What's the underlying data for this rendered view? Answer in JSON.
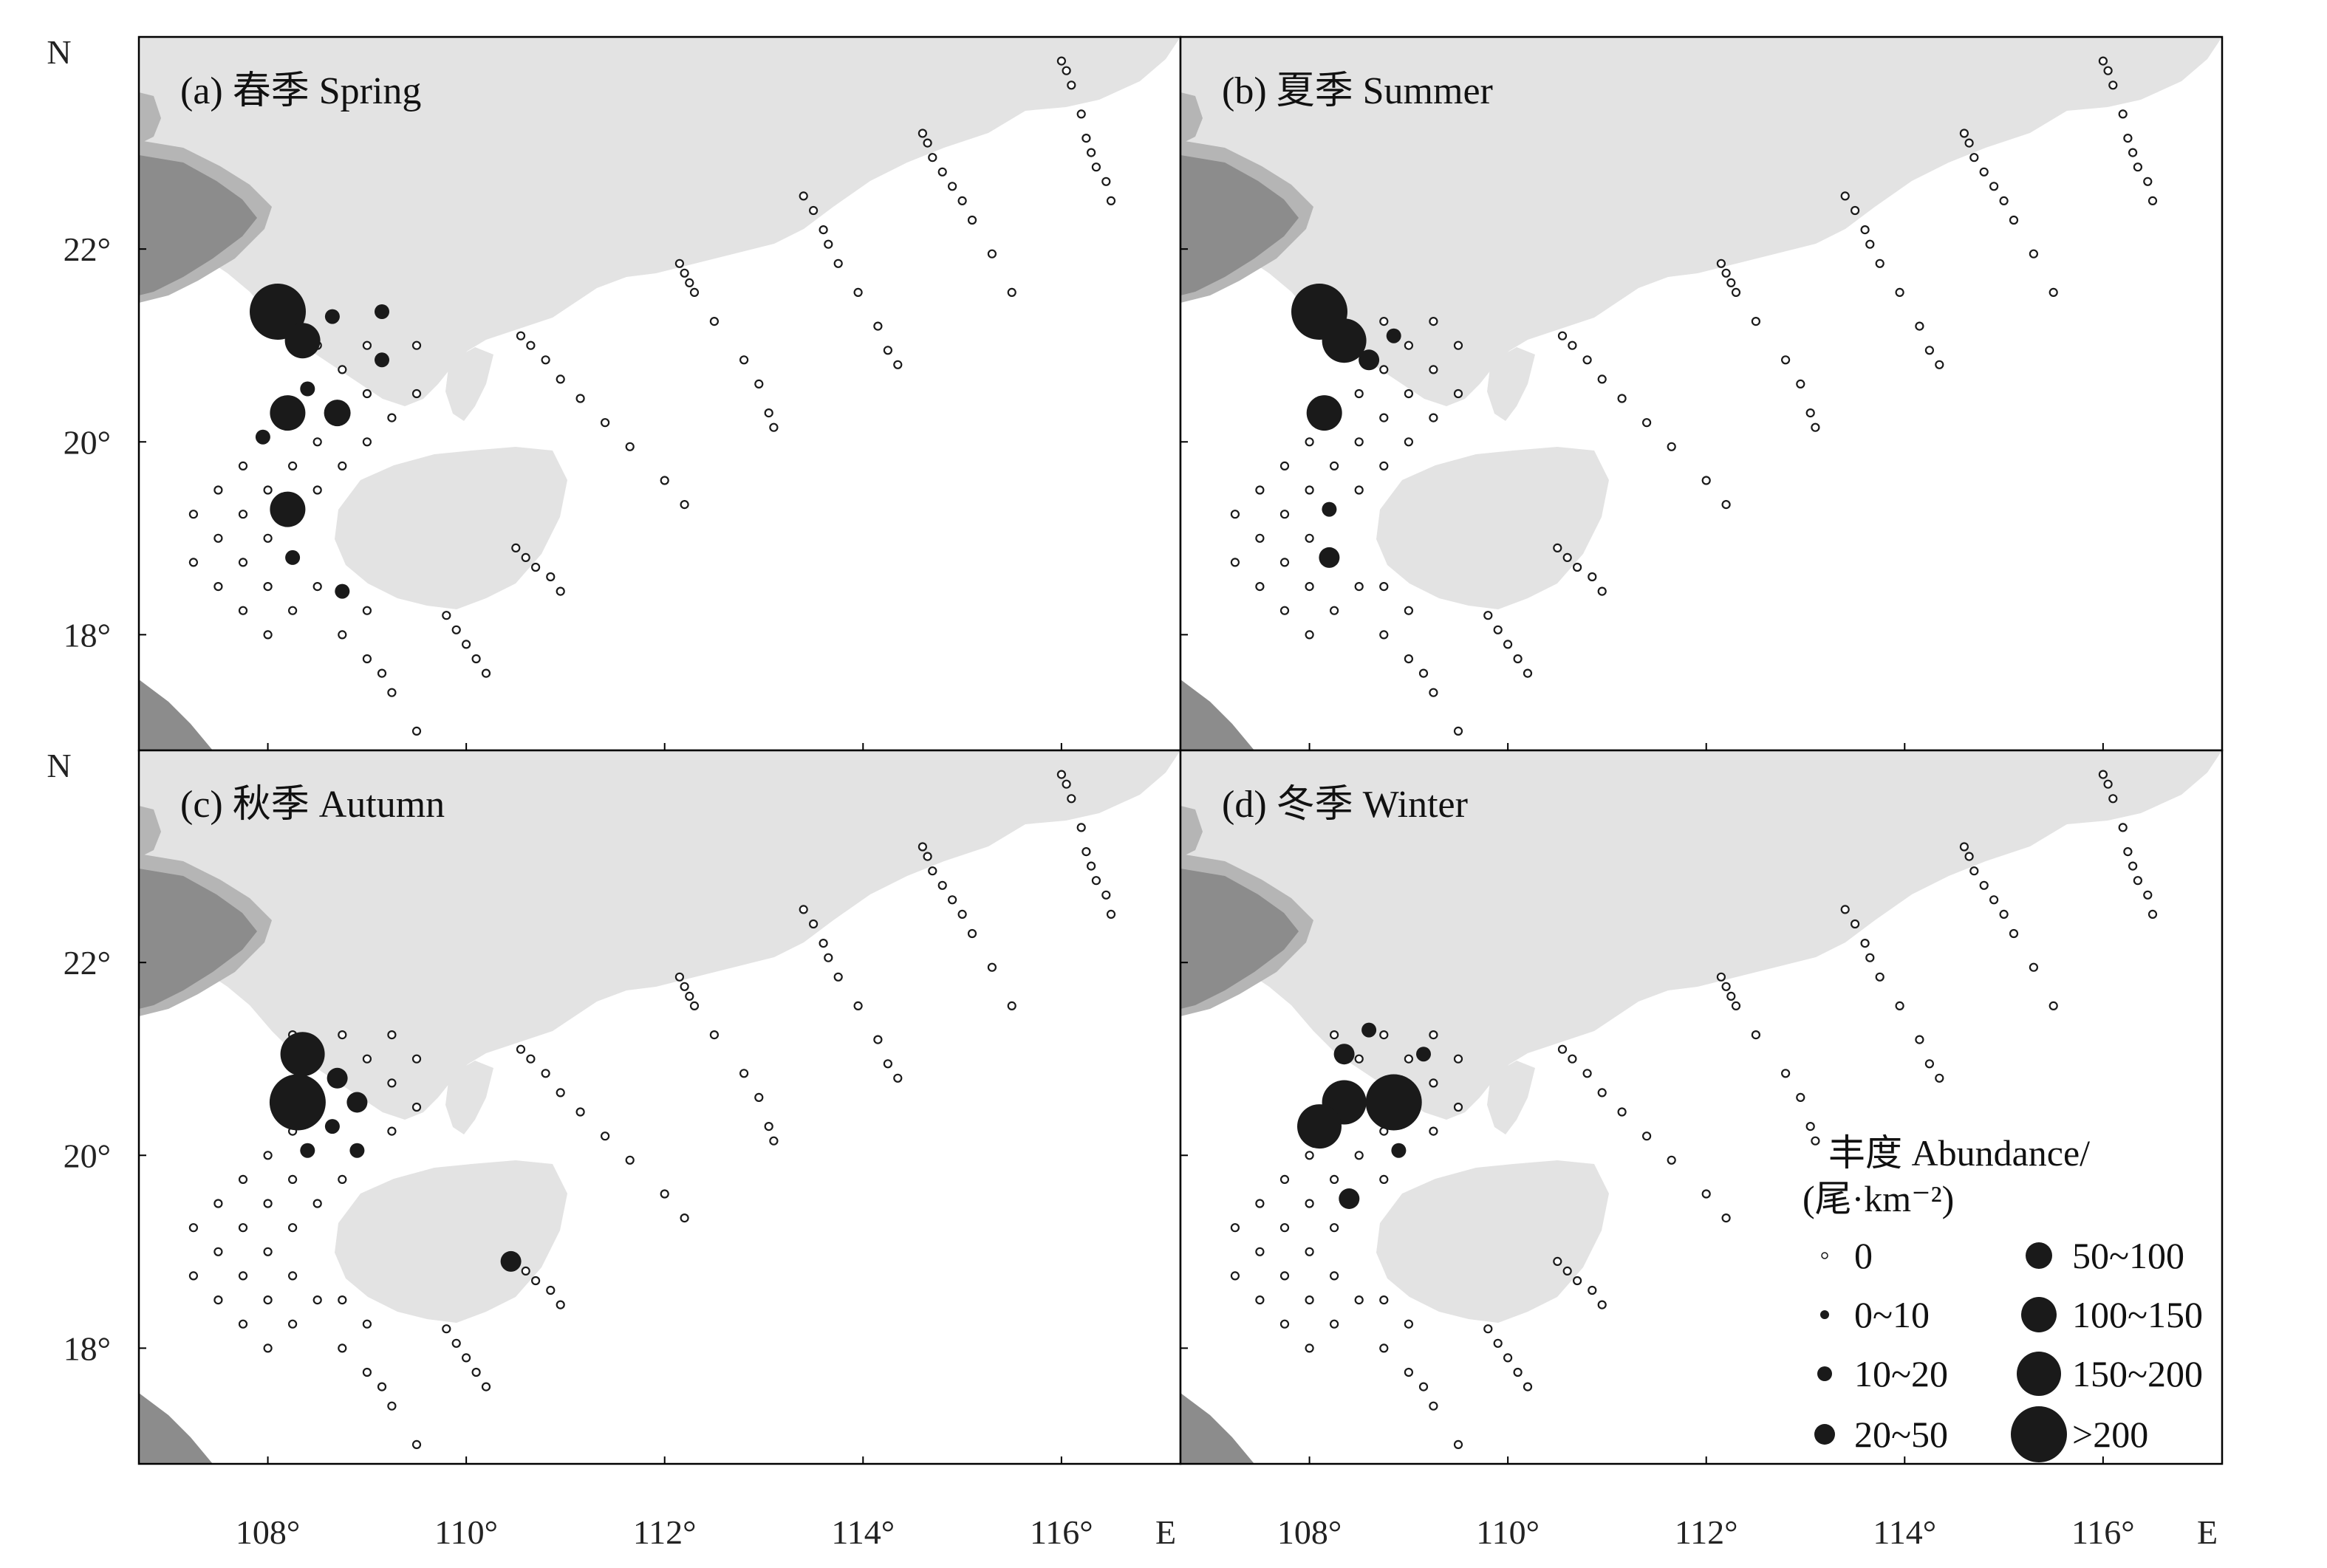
{
  "figure": {
    "axis_letters": {
      "north": "N",
      "east": "E"
    },
    "lon_ticks": [
      {
        "value": 108,
        "label": "108°"
      },
      {
        "value": 110,
        "label": "110°"
      },
      {
        "value": 112,
        "label": "112°"
      },
      {
        "value": 114,
        "label": "114°"
      },
      {
        "value": 116,
        "label": "116°"
      }
    ],
    "lat_ticks": [
      {
        "value": 18,
        "label": "18°"
      },
      {
        "value": 20,
        "label": "20°"
      },
      {
        "value": 22,
        "label": "22°"
      }
    ],
    "lon_range": [
      106.7,
      117.2
    ],
    "lat_range": [
      16.8,
      24.2
    ]
  },
  "colors": {
    "land": "#e3e3e3",
    "dark_land": "#8c8c8c",
    "dark_land_halo": "#b5b5b5",
    "marker": "#1a1a1a",
    "frame": "#000000"
  },
  "panels": [
    {
      "id": "a",
      "title": "(a) 春季 Spring"
    },
    {
      "id": "b",
      "title": "(b) 夏季 Summer"
    },
    {
      "id": "c",
      "title": "(c) 秋季 Autumn"
    },
    {
      "id": "d",
      "title": "(d) 冬季 Winter"
    }
  ],
  "legend": {
    "title_line1": "丰度 Abundance/",
    "title_line2": "(尾·km⁻²)",
    "classes": [
      "0",
      "0~10",
      "10~20",
      "20~50",
      "50~100",
      "100~150",
      "150~200",
      ">200"
    ]
  },
  "chart_data": {
    "type": "scatter",
    "note_classes": "0=0, 1=0~10, 2=10~20, 3=20~50, 4=50~100, 5=100~150, 6=150~200, 7=>200",
    "stations": [
      [
        107.25,
        19.25
      ],
      [
        107.25,
        18.75
      ],
      [
        107.5,
        19.5
      ],
      [
        107.5,
        19.0
      ],
      [
        107.5,
        18.5
      ],
      [
        107.75,
        19.75
      ],
      [
        107.75,
        19.25
      ],
      [
        107.75,
        18.75
      ],
      [
        107.75,
        18.25
      ],
      [
        108.0,
        20.0
      ],
      [
        108.0,
        19.5
      ],
      [
        108.0,
        19.0
      ],
      [
        108.0,
        18.5
      ],
      [
        108.0,
        18.0
      ],
      [
        108.25,
        20.25
      ],
      [
        108.25,
        19.75
      ],
      [
        108.25,
        19.25
      ],
      [
        108.25,
        18.75
      ],
      [
        108.25,
        18.25
      ],
      [
        108.5,
        20.5
      ],
      [
        108.5,
        20.0
      ],
      [
        108.5,
        19.5
      ],
      [
        108.5,
        18.5
      ],
      [
        108.75,
        20.75
      ],
      [
        108.75,
        20.25
      ],
      [
        108.75,
        19.75
      ],
      [
        108.75,
        18.5
      ],
      [
        109.0,
        21.0
      ],
      [
        109.0,
        20.5
      ],
      [
        109.0,
        20.0
      ],
      [
        109.0,
        18.25
      ],
      [
        109.25,
        20.75
      ],
      [
        109.25,
        20.25
      ],
      [
        109.25,
        17.4
      ],
      [
        109.5,
        20.5
      ],
      [
        109.5,
        17.0
      ],
      [
        108.25,
        21.25
      ],
      [
        108.5,
        21.0
      ],
      [
        108.75,
        21.25
      ],
      [
        109.25,
        21.25
      ],
      [
        109.5,
        21.0
      ],
      [
        108.75,
        18.0
      ],
      [
        109.0,
        17.75
      ],
      [
        109.15,
        17.6
      ],
      [
        109.8,
        18.2
      ],
      [
        109.9,
        18.05
      ],
      [
        110.0,
        17.9
      ],
      [
        110.1,
        17.75
      ],
      [
        110.2,
        17.6
      ],
      [
        110.5,
        18.9
      ],
      [
        110.6,
        18.8
      ],
      [
        110.7,
        18.7
      ],
      [
        110.85,
        18.6
      ],
      [
        110.95,
        18.45
      ],
      [
        110.55,
        21.1
      ],
      [
        110.65,
        21.0
      ],
      [
        110.8,
        20.85
      ],
      [
        110.95,
        20.65
      ],
      [
        111.15,
        20.45
      ],
      [
        111.4,
        20.2
      ],
      [
        111.65,
        19.95
      ],
      [
        112.0,
        19.6
      ],
      [
        112.2,
        19.35
      ],
      [
        112.15,
        21.85
      ],
      [
        112.2,
        21.75
      ],
      [
        112.25,
        21.65
      ],
      [
        112.3,
        21.55
      ],
      [
        112.5,
        21.25
      ],
      [
        112.8,
        20.85
      ],
      [
        112.95,
        20.6
      ],
      [
        113.05,
        20.3
      ],
      [
        113.1,
        20.15
      ],
      [
        113.4,
        22.55
      ],
      [
        113.5,
        22.4
      ],
      [
        113.6,
        22.2
      ],
      [
        113.65,
        22.05
      ],
      [
        113.75,
        21.85
      ],
      [
        113.95,
        21.55
      ],
      [
        114.15,
        21.2
      ],
      [
        114.25,
        20.95
      ],
      [
        114.35,
        20.8
      ],
      [
        114.6,
        23.2
      ],
      [
        114.65,
        23.1
      ],
      [
        114.7,
        22.95
      ],
      [
        114.8,
        22.8
      ],
      [
        114.9,
        22.65
      ],
      [
        115.0,
        22.5
      ],
      [
        115.1,
        22.3
      ],
      [
        115.3,
        21.95
      ],
      [
        115.5,
        21.55
      ],
      [
        116.0,
        23.95
      ],
      [
        116.05,
        23.85
      ],
      [
        116.1,
        23.7
      ],
      [
        116.2,
        23.4
      ],
      [
        116.25,
        23.15
      ],
      [
        116.3,
        23.0
      ],
      [
        116.35,
        22.85
      ],
      [
        116.45,
        22.7
      ],
      [
        116.5,
        22.5
      ]
    ],
    "series": [
      {
        "panel": "a",
        "catches": [
          {
            "lon": 108.1,
            "lat": 21.35,
            "class": 7
          },
          {
            "lon": 108.35,
            "lat": 21.05,
            "class": 5
          },
          {
            "lon": 108.65,
            "lat": 21.3,
            "class": 2
          },
          {
            "lon": 109.15,
            "lat": 21.35,
            "class": 2
          },
          {
            "lon": 109.15,
            "lat": 20.85,
            "class": 2
          },
          {
            "lon": 108.4,
            "lat": 20.55,
            "class": 2
          },
          {
            "lon": 108.2,
            "lat": 20.3,
            "class": 5
          },
          {
            "lon": 108.7,
            "lat": 20.3,
            "class": 4
          },
          {
            "lon": 107.95,
            "lat": 20.05,
            "class": 2
          },
          {
            "lon": 108.2,
            "lat": 19.3,
            "class": 5
          },
          {
            "lon": 108.25,
            "lat": 18.8,
            "class": 2
          },
          {
            "lon": 108.75,
            "lat": 18.45,
            "class": 2
          }
        ]
      },
      {
        "panel": "b",
        "catches": [
          {
            "lon": 108.1,
            "lat": 21.35,
            "class": 7
          },
          {
            "lon": 108.35,
            "lat": 21.05,
            "class": 6
          },
          {
            "lon": 108.6,
            "lat": 20.85,
            "class": 3
          },
          {
            "lon": 108.85,
            "lat": 21.1,
            "class": 2
          },
          {
            "lon": 108.15,
            "lat": 20.3,
            "class": 5
          },
          {
            "lon": 108.2,
            "lat": 19.3,
            "class": 2
          },
          {
            "lon": 108.2,
            "lat": 18.8,
            "class": 3
          }
        ]
      },
      {
        "panel": "c",
        "catches": [
          {
            "lon": 108.35,
            "lat": 21.05,
            "class": 6
          },
          {
            "lon": 108.3,
            "lat": 20.55,
            "class": 7
          },
          {
            "lon": 108.7,
            "lat": 20.8,
            "class": 3
          },
          {
            "lon": 108.9,
            "lat": 20.55,
            "class": 3
          },
          {
            "lon": 108.65,
            "lat": 20.3,
            "class": 2
          },
          {
            "lon": 108.4,
            "lat": 20.05,
            "class": 2
          },
          {
            "lon": 108.9,
            "lat": 20.05,
            "class": 2
          },
          {
            "lon": 110.45,
            "lat": 18.9,
            "class": 3
          }
        ]
      },
      {
        "panel": "d",
        "catches": [
          {
            "lon": 108.6,
            "lat": 21.3,
            "class": 2
          },
          {
            "lon": 108.35,
            "lat": 21.05,
            "class": 3
          },
          {
            "lon": 109.15,
            "lat": 21.05,
            "class": 2
          },
          {
            "lon": 108.35,
            "lat": 20.55,
            "class": 6
          },
          {
            "lon": 108.85,
            "lat": 20.55,
            "class": 7
          },
          {
            "lon": 108.1,
            "lat": 20.3,
            "class": 6
          },
          {
            "lon": 108.9,
            "lat": 20.05,
            "class": 2
          },
          {
            "lon": 108.4,
            "lat": 19.55,
            "class": 3
          }
        ]
      }
    ]
  }
}
